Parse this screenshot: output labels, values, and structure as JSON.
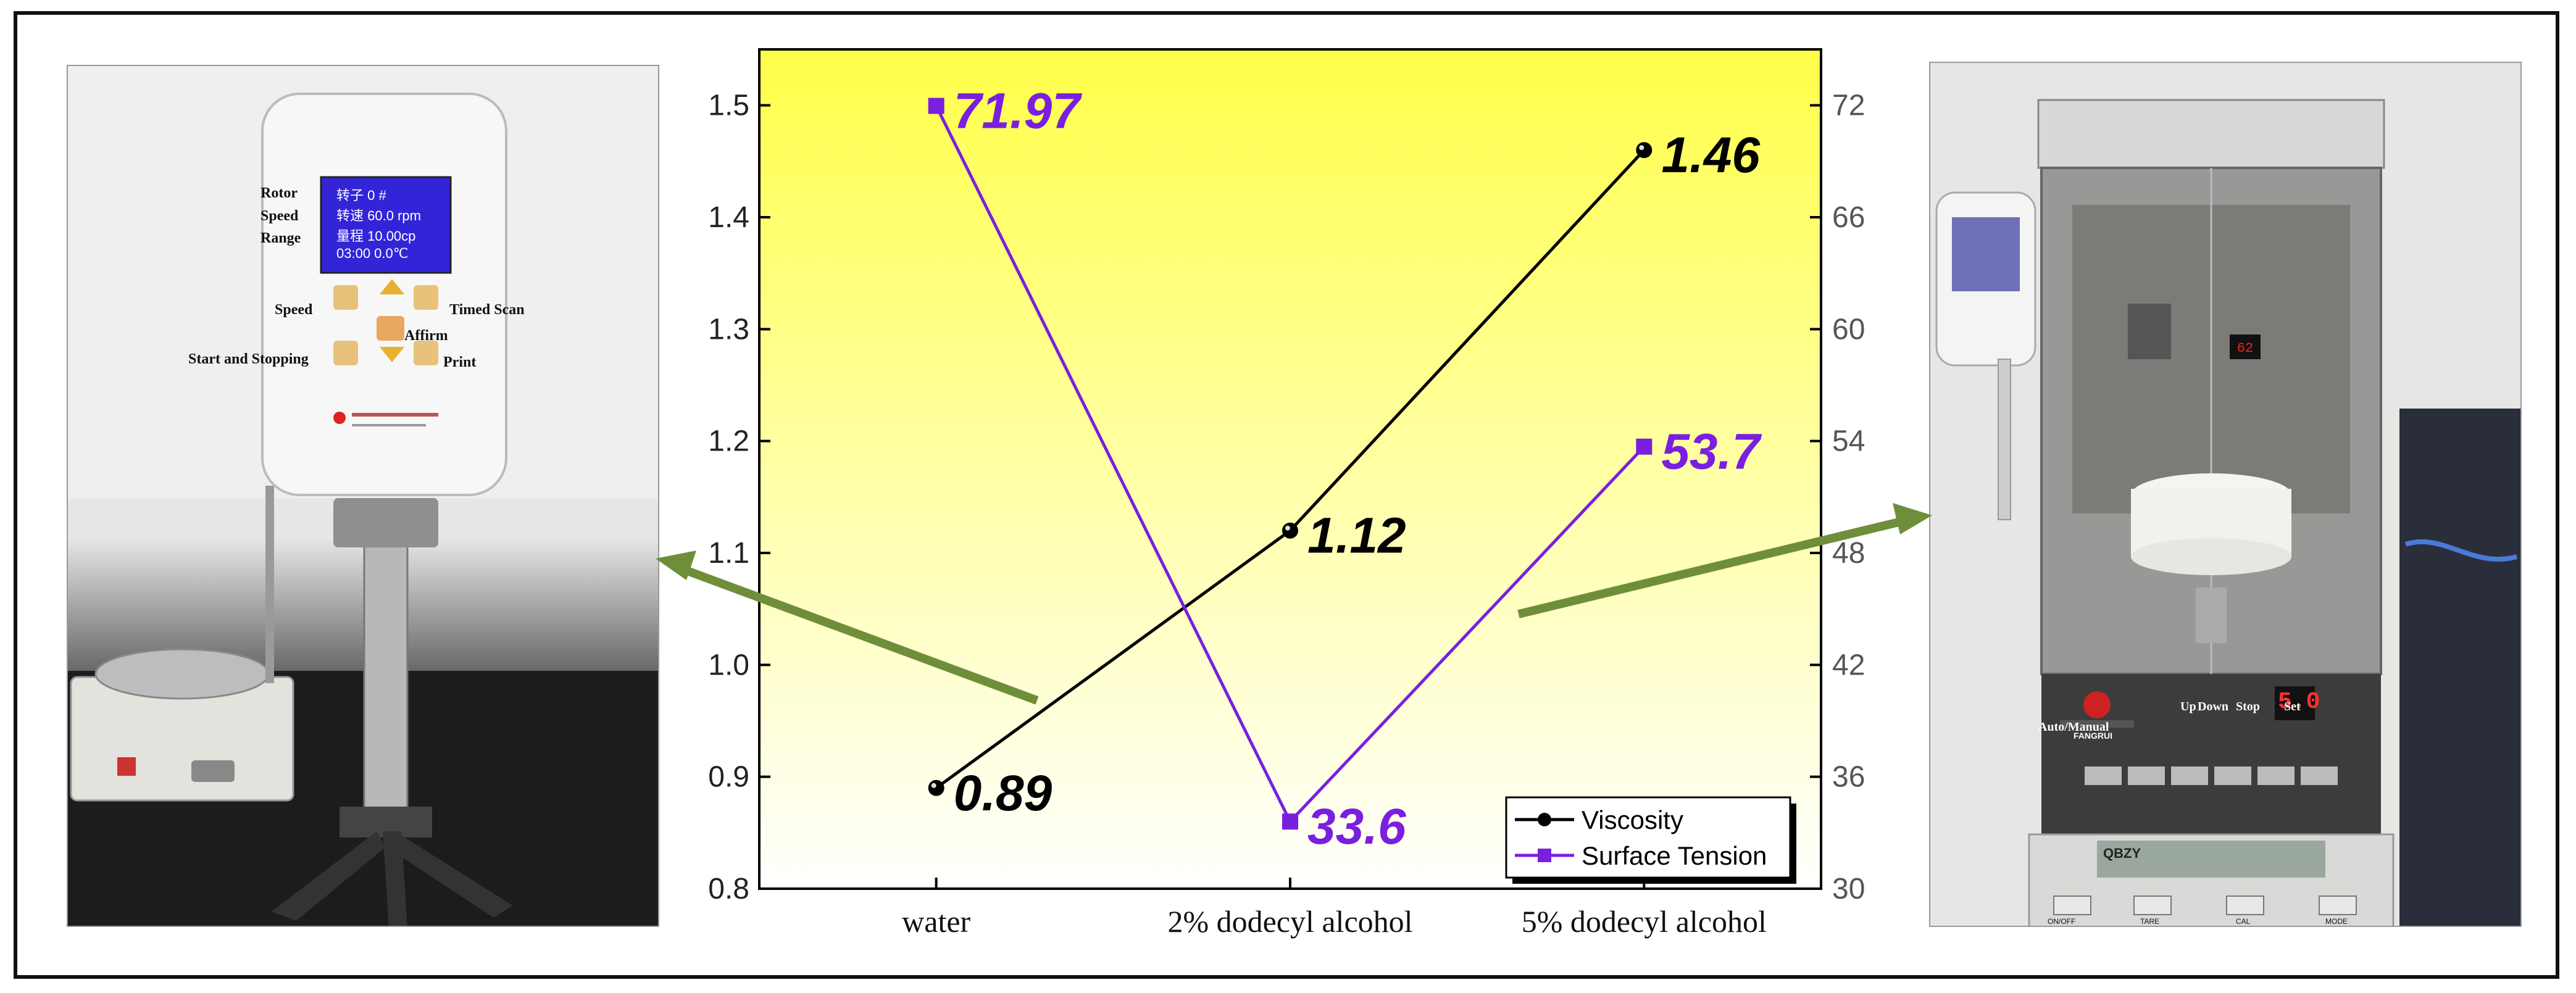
{
  "left_photo": {
    "labels": {
      "rotor": "Rotor",
      "speed": "Speed",
      "range": "Range",
      "speed_key": "Speed",
      "timed_scan": "Timed Scan",
      "affirm": "Affirm",
      "start_stop": "Start and Stopping",
      "print": "Print"
    },
    "screen_lines": [
      "转子  0  #",
      "转速  60.0  rpm",
      "量程  10.00cp",
      "03:00     0.0℃"
    ]
  },
  "right_photo": {
    "labels": {
      "auto_manual": "Auto/Manual",
      "up": "Up",
      "down": "Down",
      "stop": "Stop",
      "set": "Set"
    },
    "display": "5.0",
    "model": "QBZY",
    "brand": "FANGRUI",
    "buttons": [
      "ON/OFF",
      "TARE",
      "CAL",
      "MODE"
    ]
  },
  "chart_data": {
    "type": "line",
    "categories": [
      "water",
      "2% dodecyl alcohol",
      "5% dodecyl alcohol"
    ],
    "series": [
      {
        "name": "Viscosity",
        "axis": "left",
        "values": [
          0.89,
          1.12,
          1.46
        ],
        "labels": [
          "0.89",
          "1.12",
          "1.46"
        ],
        "color": "#000000",
        "marker": "circle"
      },
      {
        "name": "Surface Tension",
        "axis": "right",
        "values": [
          71.97,
          33.6,
          53.7
        ],
        "labels": [
          "71.97",
          "33.6",
          "53.7"
        ],
        "color": "#7a1fe0",
        "marker": "square"
      }
    ],
    "y_left": {
      "min": 0.8,
      "max": 1.55,
      "ticks": [
        "0.8",
        "0.9",
        "1.0",
        "1.1",
        "1.2",
        "1.3",
        "1.4",
        "1.5"
      ]
    },
    "y_right": {
      "min": 30,
      "max": 75,
      "ticks": [
        "30",
        "36",
        "42",
        "48",
        "54",
        "60",
        "66",
        "72"
      ]
    },
    "background": {
      "top": "#ffff4a",
      "bottom": "#ffffff"
    },
    "legend_position": "bottom-right",
    "grid": false
  }
}
